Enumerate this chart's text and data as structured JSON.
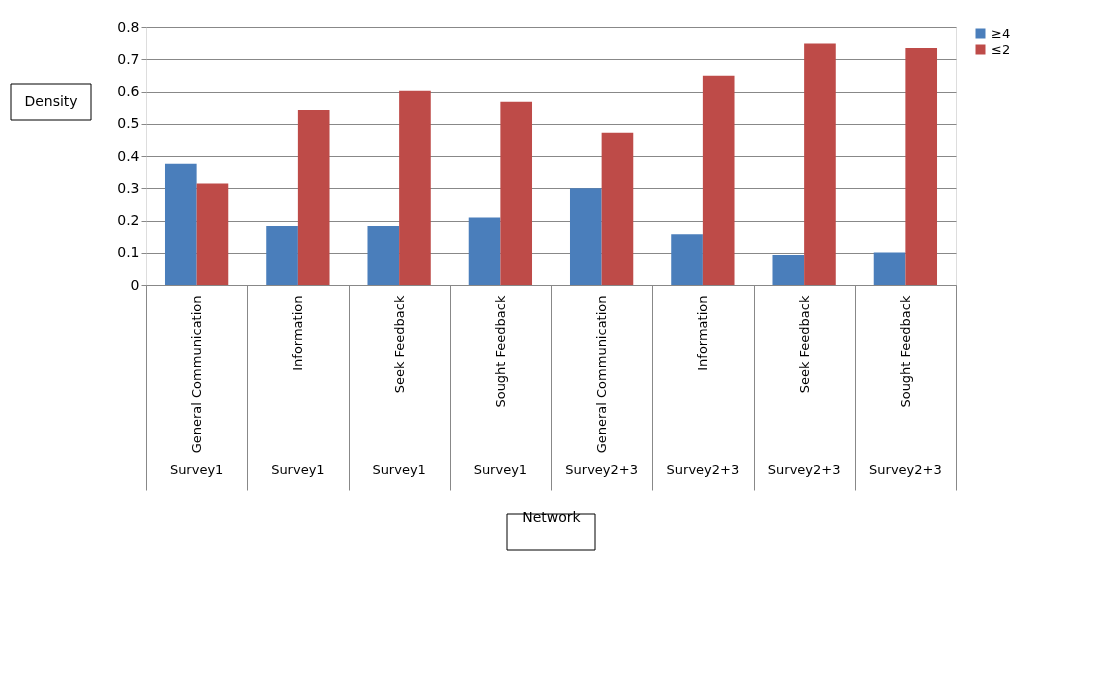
{
  "chart_data": {
    "type": "bar",
    "xlabel": "Network",
    "ylabel": "Density",
    "categories": [
      "General Communication",
      "Information",
      "Seek Feedback",
      "Sought Feedback",
      "General Communication",
      "Information",
      "Seek Feedback",
      "Sought Feedback"
    ],
    "annotations": [
      "Survey1",
      "Survey1",
      "Survey1",
      "Survey1",
      "Survey2+3",
      "Survey2+3",
      "Survey2+3",
      "Survey2+3"
    ],
    "series": [
      {
        "name": "≥4",
        "color": "#4a7ebb",
        "values": [
          0.376,
          0.183,
          0.183,
          0.209,
          0.3,
          0.157,
          0.093,
          0.101
        ]
      },
      {
        "name": "≤2",
        "color": "#be4b48",
        "values": [
          0.315,
          0.543,
          0.602,
          0.568,
          0.472,
          0.649,
          0.749,
          0.735
        ]
      }
    ],
    "ylim": [
      0,
      0.8
    ],
    "yticks": [
      0,
      0.1,
      0.2,
      0.3,
      0.4,
      0.5,
      0.6,
      0.7,
      0.8
    ],
    "grid": "y",
    "legend": "right"
  }
}
